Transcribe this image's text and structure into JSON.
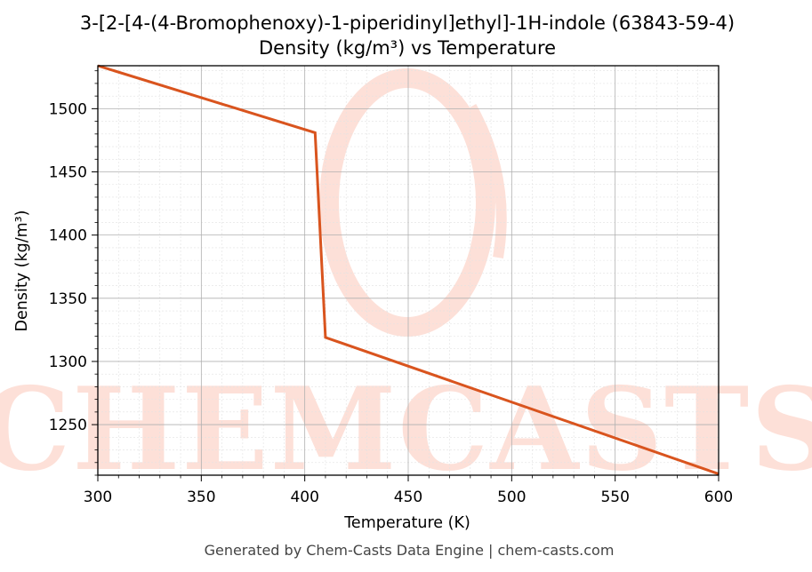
{
  "chart_data": {
    "type": "line",
    "title": "3-[2-[4-(4-Bromophenoxy)-1-piperidinyl]ethyl]-1H-indole (63843-59-4)",
    "subtitle": "Density (kg/m³) vs Temperature",
    "xlabel": "Temperature (K)",
    "ylabel": "Density (kg/m³)",
    "xlim": [
      300,
      600
    ],
    "ylim": [
      1210,
      1534
    ],
    "xticks": [
      300,
      350,
      400,
      450,
      500,
      550,
      600
    ],
    "yticks": [
      1250,
      1300,
      1350,
      1400,
      1450,
      1500
    ],
    "grid": true,
    "legend": "none",
    "colors": {
      "line": "#d9541e",
      "grid_major": "#b0b0b0",
      "grid_minor": "#e2e2e2",
      "watermark": "#fde0d8"
    },
    "series": [
      {
        "x": [
          300,
          405,
          410,
          600
        ],
        "y": [
          1534,
          1481,
          1319,
          1211
        ]
      }
    ]
  },
  "watermark": {
    "text": "CHEMCASTS"
  },
  "footer": "Generated by Chem-Casts Data Engine | chem-casts.com"
}
